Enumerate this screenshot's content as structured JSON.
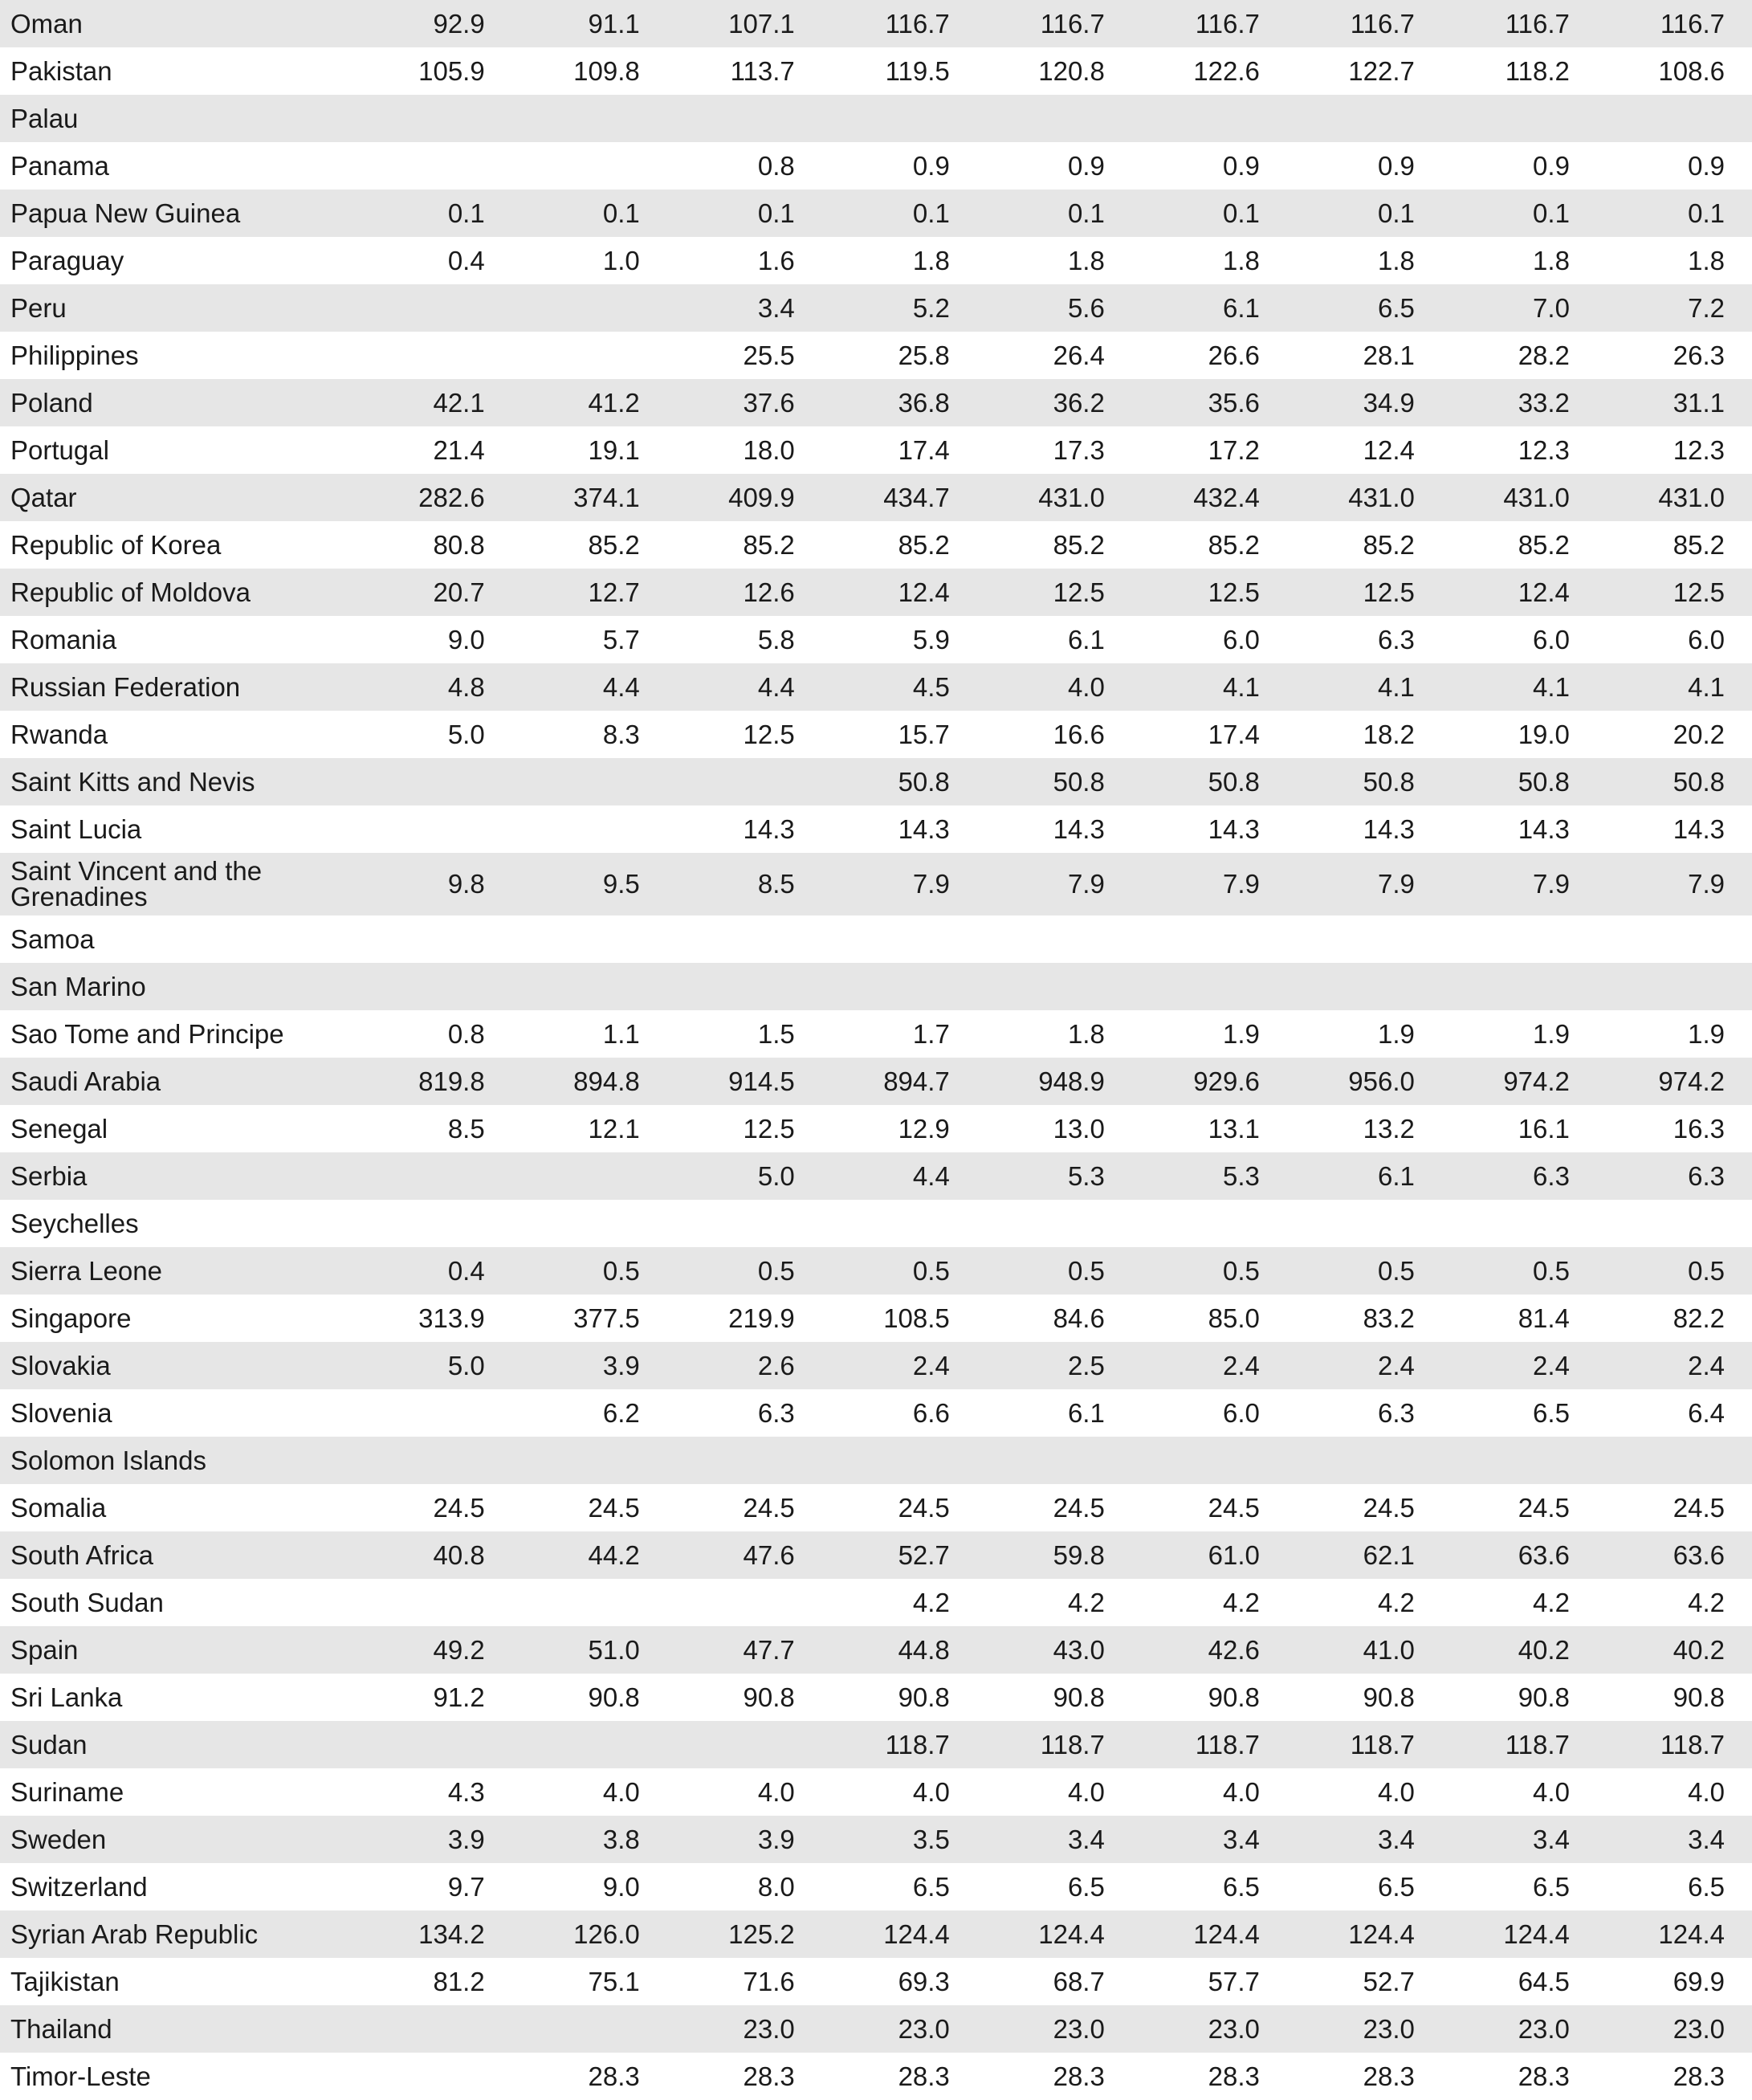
{
  "rows": [
    {
      "country": "Oman",
      "values": [
        "92.9",
        "91.1",
        "107.1",
        "116.7",
        "116.7",
        "116.7",
        "116.7",
        "116.7",
        "116.7"
      ]
    },
    {
      "country": "Pakistan",
      "values": [
        "105.9",
        "109.8",
        "113.7",
        "119.5",
        "120.8",
        "122.6",
        "122.7",
        "118.2",
        "108.6"
      ]
    },
    {
      "country": "Palau",
      "values": [
        "",
        "",
        "",
        "",
        "",
        "",
        "",
        "",
        ""
      ]
    },
    {
      "country": "Panama",
      "values": [
        "",
        "",
        "0.8",
        "0.9",
        "0.9",
        "0.9",
        "0.9",
        "0.9",
        "0.9"
      ]
    },
    {
      "country": "Papua New Guinea",
      "values": [
        "0.1",
        "0.1",
        "0.1",
        "0.1",
        "0.1",
        "0.1",
        "0.1",
        "0.1",
        "0.1"
      ]
    },
    {
      "country": "Paraguay",
      "values": [
        "0.4",
        "1.0",
        "1.6",
        "1.8",
        "1.8",
        "1.8",
        "1.8",
        "1.8",
        "1.8"
      ]
    },
    {
      "country": "Peru",
      "values": [
        "",
        "",
        "3.4",
        "5.2",
        "5.6",
        "6.1",
        "6.5",
        "7.0",
        "7.2"
      ]
    },
    {
      "country": "Philippines",
      "values": [
        "",
        "",
        "25.5",
        "25.8",
        "26.4",
        "26.6",
        "28.1",
        "28.2",
        "26.3"
      ]
    },
    {
      "country": "Poland",
      "values": [
        "42.1",
        "41.2",
        "37.6",
        "36.8",
        "36.2",
        "35.6",
        "34.9",
        "33.2",
        "31.1"
      ]
    },
    {
      "country": "Portugal",
      "values": [
        "21.4",
        "19.1",
        "18.0",
        "17.4",
        "17.3",
        "17.2",
        "12.4",
        "12.3",
        "12.3"
      ]
    },
    {
      "country": "Qatar",
      "values": [
        "282.6",
        "374.1",
        "409.9",
        "434.7",
        "431.0",
        "432.4",
        "431.0",
        "431.0",
        "431.0"
      ]
    },
    {
      "country": "Republic of Korea",
      "values": [
        "80.8",
        "85.2",
        "85.2",
        "85.2",
        "85.2",
        "85.2",
        "85.2",
        "85.2",
        "85.2"
      ]
    },
    {
      "country": "Republic of Moldova",
      "values": [
        "20.7",
        "12.7",
        "12.6",
        "12.4",
        "12.5",
        "12.5",
        "12.5",
        "12.4",
        "12.5"
      ]
    },
    {
      "country": "Romania",
      "values": [
        "9.0",
        "5.7",
        "5.8",
        "5.9",
        "6.1",
        "6.0",
        "6.3",
        "6.0",
        "6.0"
      ]
    },
    {
      "country": "Russian Federation",
      "values": [
        "4.8",
        "4.4",
        "4.4",
        "4.5",
        "4.0",
        "4.1",
        "4.1",
        "4.1",
        "4.1"
      ]
    },
    {
      "country": "Rwanda",
      "values": [
        "5.0",
        "8.3",
        "12.5",
        "15.7",
        "16.6",
        "17.4",
        "18.2",
        "19.0",
        "20.2"
      ]
    },
    {
      "country": "Saint Kitts and Nevis",
      "values": [
        "",
        "",
        "",
        "50.8",
        "50.8",
        "50.8",
        "50.8",
        "50.8",
        "50.8"
      ]
    },
    {
      "country": "Saint Lucia",
      "values": [
        "",
        "",
        "14.3",
        "14.3",
        "14.3",
        "14.3",
        "14.3",
        "14.3",
        "14.3"
      ]
    },
    {
      "country": "Saint Vincent and the Grenadines",
      "tall": true,
      "values": [
        "9.8",
        "9.5",
        "8.5",
        "7.9",
        "7.9",
        "7.9",
        "7.9",
        "7.9",
        "7.9"
      ]
    },
    {
      "country": "Samoa",
      "values": [
        "",
        "",
        "",
        "",
        "",
        "",
        "",
        "",
        ""
      ]
    },
    {
      "country": "San Marino",
      "values": [
        "",
        "",
        "",
        "",
        "",
        "",
        "",
        "",
        ""
      ]
    },
    {
      "country": "Sao Tome and Principe",
      "values": [
        "0.8",
        "1.1",
        "1.5",
        "1.7",
        "1.8",
        "1.9",
        "1.9",
        "1.9",
        "1.9"
      ]
    },
    {
      "country": "Saudi Arabia",
      "values": [
        "819.8",
        "894.8",
        "914.5",
        "894.7",
        "948.9",
        "929.6",
        "956.0",
        "974.2",
        "974.2"
      ]
    },
    {
      "country": "Senegal",
      "values": [
        "8.5",
        "12.1",
        "12.5",
        "12.9",
        "13.0",
        "13.1",
        "13.2",
        "16.1",
        "16.3"
      ]
    },
    {
      "country": "Serbia",
      "values": [
        "",
        "",
        "5.0",
        "4.4",
        "5.3",
        "5.3",
        "6.1",
        "6.3",
        "6.3"
      ]
    },
    {
      "country": "Seychelles",
      "values": [
        "",
        "",
        "",
        "",
        "",
        "",
        "",
        "",
        ""
      ]
    },
    {
      "country": "Sierra Leone",
      "values": [
        "0.4",
        "0.5",
        "0.5",
        "0.5",
        "0.5",
        "0.5",
        "0.5",
        "0.5",
        "0.5"
      ]
    },
    {
      "country": "Singapore",
      "values": [
        "313.9",
        "377.5",
        "219.9",
        "108.5",
        "84.6",
        "85.0",
        "83.2",
        "81.4",
        "82.2"
      ]
    },
    {
      "country": "Slovakia",
      "values": [
        "5.0",
        "3.9",
        "2.6",
        "2.4",
        "2.5",
        "2.4",
        "2.4",
        "2.4",
        "2.4"
      ]
    },
    {
      "country": "Slovenia",
      "values": [
        "",
        "6.2",
        "6.3",
        "6.6",
        "6.1",
        "6.0",
        "6.3",
        "6.5",
        "6.4"
      ]
    },
    {
      "country": "Solomon Islands",
      "values": [
        "",
        "",
        "",
        "",
        "",
        "",
        "",
        "",
        ""
      ]
    },
    {
      "country": "Somalia",
      "values": [
        "24.5",
        "24.5",
        "24.5",
        "24.5",
        "24.5",
        "24.5",
        "24.5",
        "24.5",
        "24.5"
      ]
    },
    {
      "country": "South Africa",
      "values": [
        "40.8",
        "44.2",
        "47.6",
        "52.7",
        "59.8",
        "61.0",
        "62.1",
        "63.6",
        "63.6"
      ]
    },
    {
      "country": "South Sudan",
      "values": [
        "",
        "",
        "",
        "4.2",
        "4.2",
        "4.2",
        "4.2",
        "4.2",
        "4.2"
      ]
    },
    {
      "country": "Spain",
      "values": [
        "49.2",
        "51.0",
        "47.7",
        "44.8",
        "43.0",
        "42.6",
        "41.0",
        "40.2",
        "40.2"
      ]
    },
    {
      "country": "Sri Lanka",
      "values": [
        "91.2",
        "90.8",
        "90.8",
        "90.8",
        "90.8",
        "90.8",
        "90.8",
        "90.8",
        "90.8"
      ]
    },
    {
      "country": "Sudan",
      "values": [
        "",
        "",
        "",
        "118.7",
        "118.7",
        "118.7",
        "118.7",
        "118.7",
        "118.7"
      ]
    },
    {
      "country": "Suriname",
      "values": [
        "4.3",
        "4.0",
        "4.0",
        "4.0",
        "4.0",
        "4.0",
        "4.0",
        "4.0",
        "4.0"
      ]
    },
    {
      "country": "Sweden",
      "values": [
        "3.9",
        "3.8",
        "3.9",
        "3.5",
        "3.4",
        "3.4",
        "3.4",
        "3.4",
        "3.4"
      ]
    },
    {
      "country": "Switzerland",
      "values": [
        "9.7",
        "9.0",
        "8.0",
        "6.5",
        "6.5",
        "6.5",
        "6.5",
        "6.5",
        "6.5"
      ]
    },
    {
      "country": "Syrian Arab Republic",
      "values": [
        "134.2",
        "126.0",
        "125.2",
        "124.4",
        "124.4",
        "124.4",
        "124.4",
        "124.4",
        "124.4"
      ]
    },
    {
      "country": "Tajikistan",
      "values": [
        "81.2",
        "75.1",
        "71.6",
        "69.3",
        "68.7",
        "57.7",
        "52.7",
        "64.5",
        "69.9"
      ]
    },
    {
      "country": "Thailand",
      "values": [
        "",
        "",
        "23.0",
        "23.0",
        "23.0",
        "23.0",
        "23.0",
        "23.0",
        "23.0"
      ]
    },
    {
      "country": "Timor-Leste",
      "values": [
        "",
        "28.3",
        "28.3",
        "28.3",
        "28.3",
        "28.3",
        "28.3",
        "28.3",
        "28.3"
      ]
    }
  ]
}
